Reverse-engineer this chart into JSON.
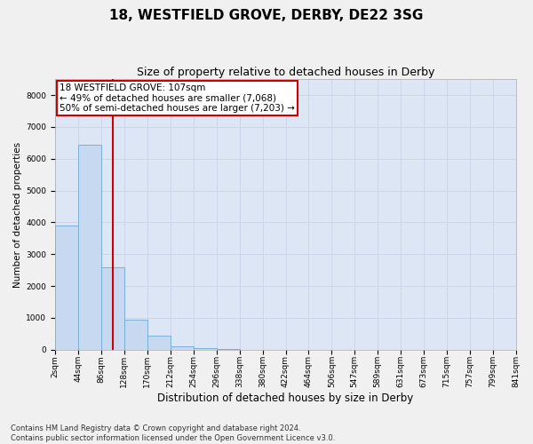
{
  "title1": "18, WESTFIELD GROVE, DERBY, DE22 3SG",
  "title2": "Size of property relative to detached houses in Derby",
  "xlabel": "Distribution of detached houses by size in Derby",
  "ylabel": "Number of detached properties",
  "footnote": "Contains HM Land Registry data © Crown copyright and database right 2024.\nContains public sector information licensed under the Open Government Licence v3.0.",
  "bin_edges": [
    2,
    44,
    86,
    128,
    170,
    212,
    254,
    296,
    338,
    380,
    422,
    464,
    506,
    547,
    589,
    631,
    673,
    715,
    757,
    799,
    841
  ],
  "bar_heights": [
    3900,
    6450,
    2600,
    950,
    450,
    120,
    50,
    10,
    0,
    0,
    0,
    0,
    0,
    0,
    0,
    0,
    0,
    0,
    0,
    0
  ],
  "bar_color": "#c7d9f0",
  "bar_edge_color": "#7bafd4",
  "property_size": 107,
  "property_label": "18 WESTFIELD GROVE: 107sqm",
  "annotation_line1": "← 49% of detached houses are smaller (7,068)",
  "annotation_line2": "50% of semi-detached houses are larger (7,203) →",
  "vline_color": "#cc0000",
  "annotation_box_facecolor": "#ffffff",
  "annotation_box_edgecolor": "#cc0000",
  "ylim": [
    0,
    8500
  ],
  "yticks": [
    0,
    1000,
    2000,
    3000,
    4000,
    5000,
    6000,
    7000,
    8000
  ],
  "grid_color": "#c8d4e8",
  "plot_bg_color": "#dce6f5",
  "fig_bg_color": "#f0f0f0",
  "title1_fontsize": 11,
  "title2_fontsize": 9,
  "xlabel_fontsize": 8.5,
  "ylabel_fontsize": 7.5,
  "tick_fontsize": 6.5,
  "annotation_fontsize": 7.5,
  "footnote_fontsize": 6
}
